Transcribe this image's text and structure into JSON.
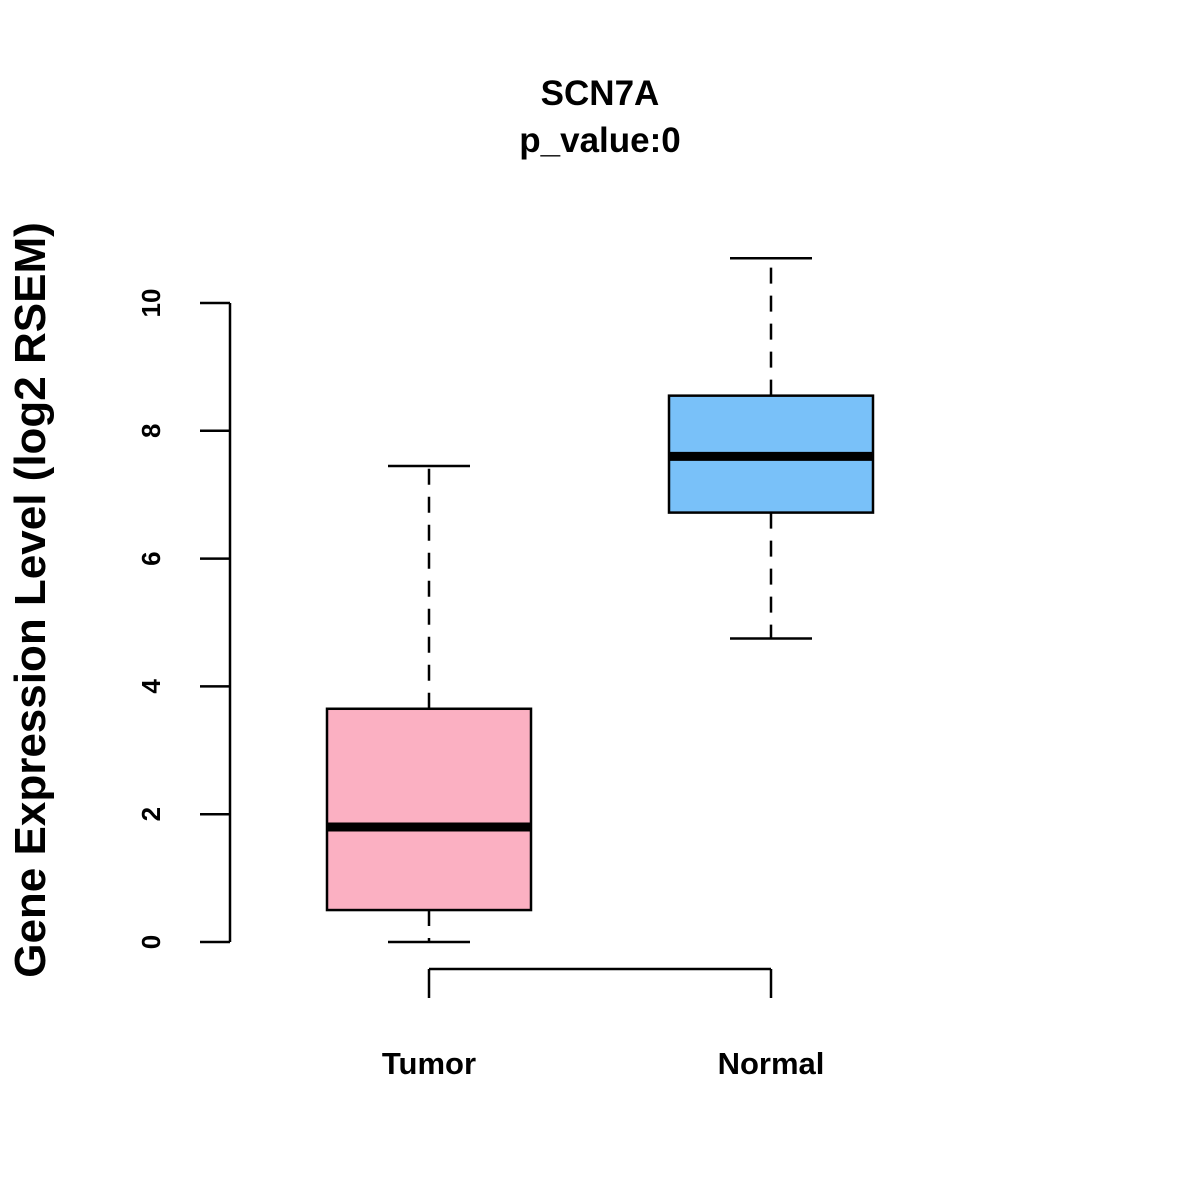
{
  "chart_data": {
    "type": "box",
    "title": "SCN7A",
    "subtitle": "p_value:0",
    "xlabel": "",
    "ylabel": "Gene Expression Level (log2 RSEM)",
    "ylim": [
      0,
      10
    ],
    "yticks": [
      "0",
      "2",
      "4",
      "6",
      "8",
      "10"
    ],
    "grid": false,
    "categories": [
      "Tumor",
      "Normal"
    ],
    "boxes": [
      {
        "name": "Tumor",
        "min": 0,
        "q1": 0.5,
        "median": 1.8,
        "q3": 3.65,
        "max": 7.45,
        "color": "#FBB0C2"
      },
      {
        "name": "Normal",
        "min": 4.75,
        "q1": 6.72,
        "median": 7.6,
        "q3": 8.55,
        "max": 10.7,
        "color": "#79C1F9"
      }
    ]
  }
}
